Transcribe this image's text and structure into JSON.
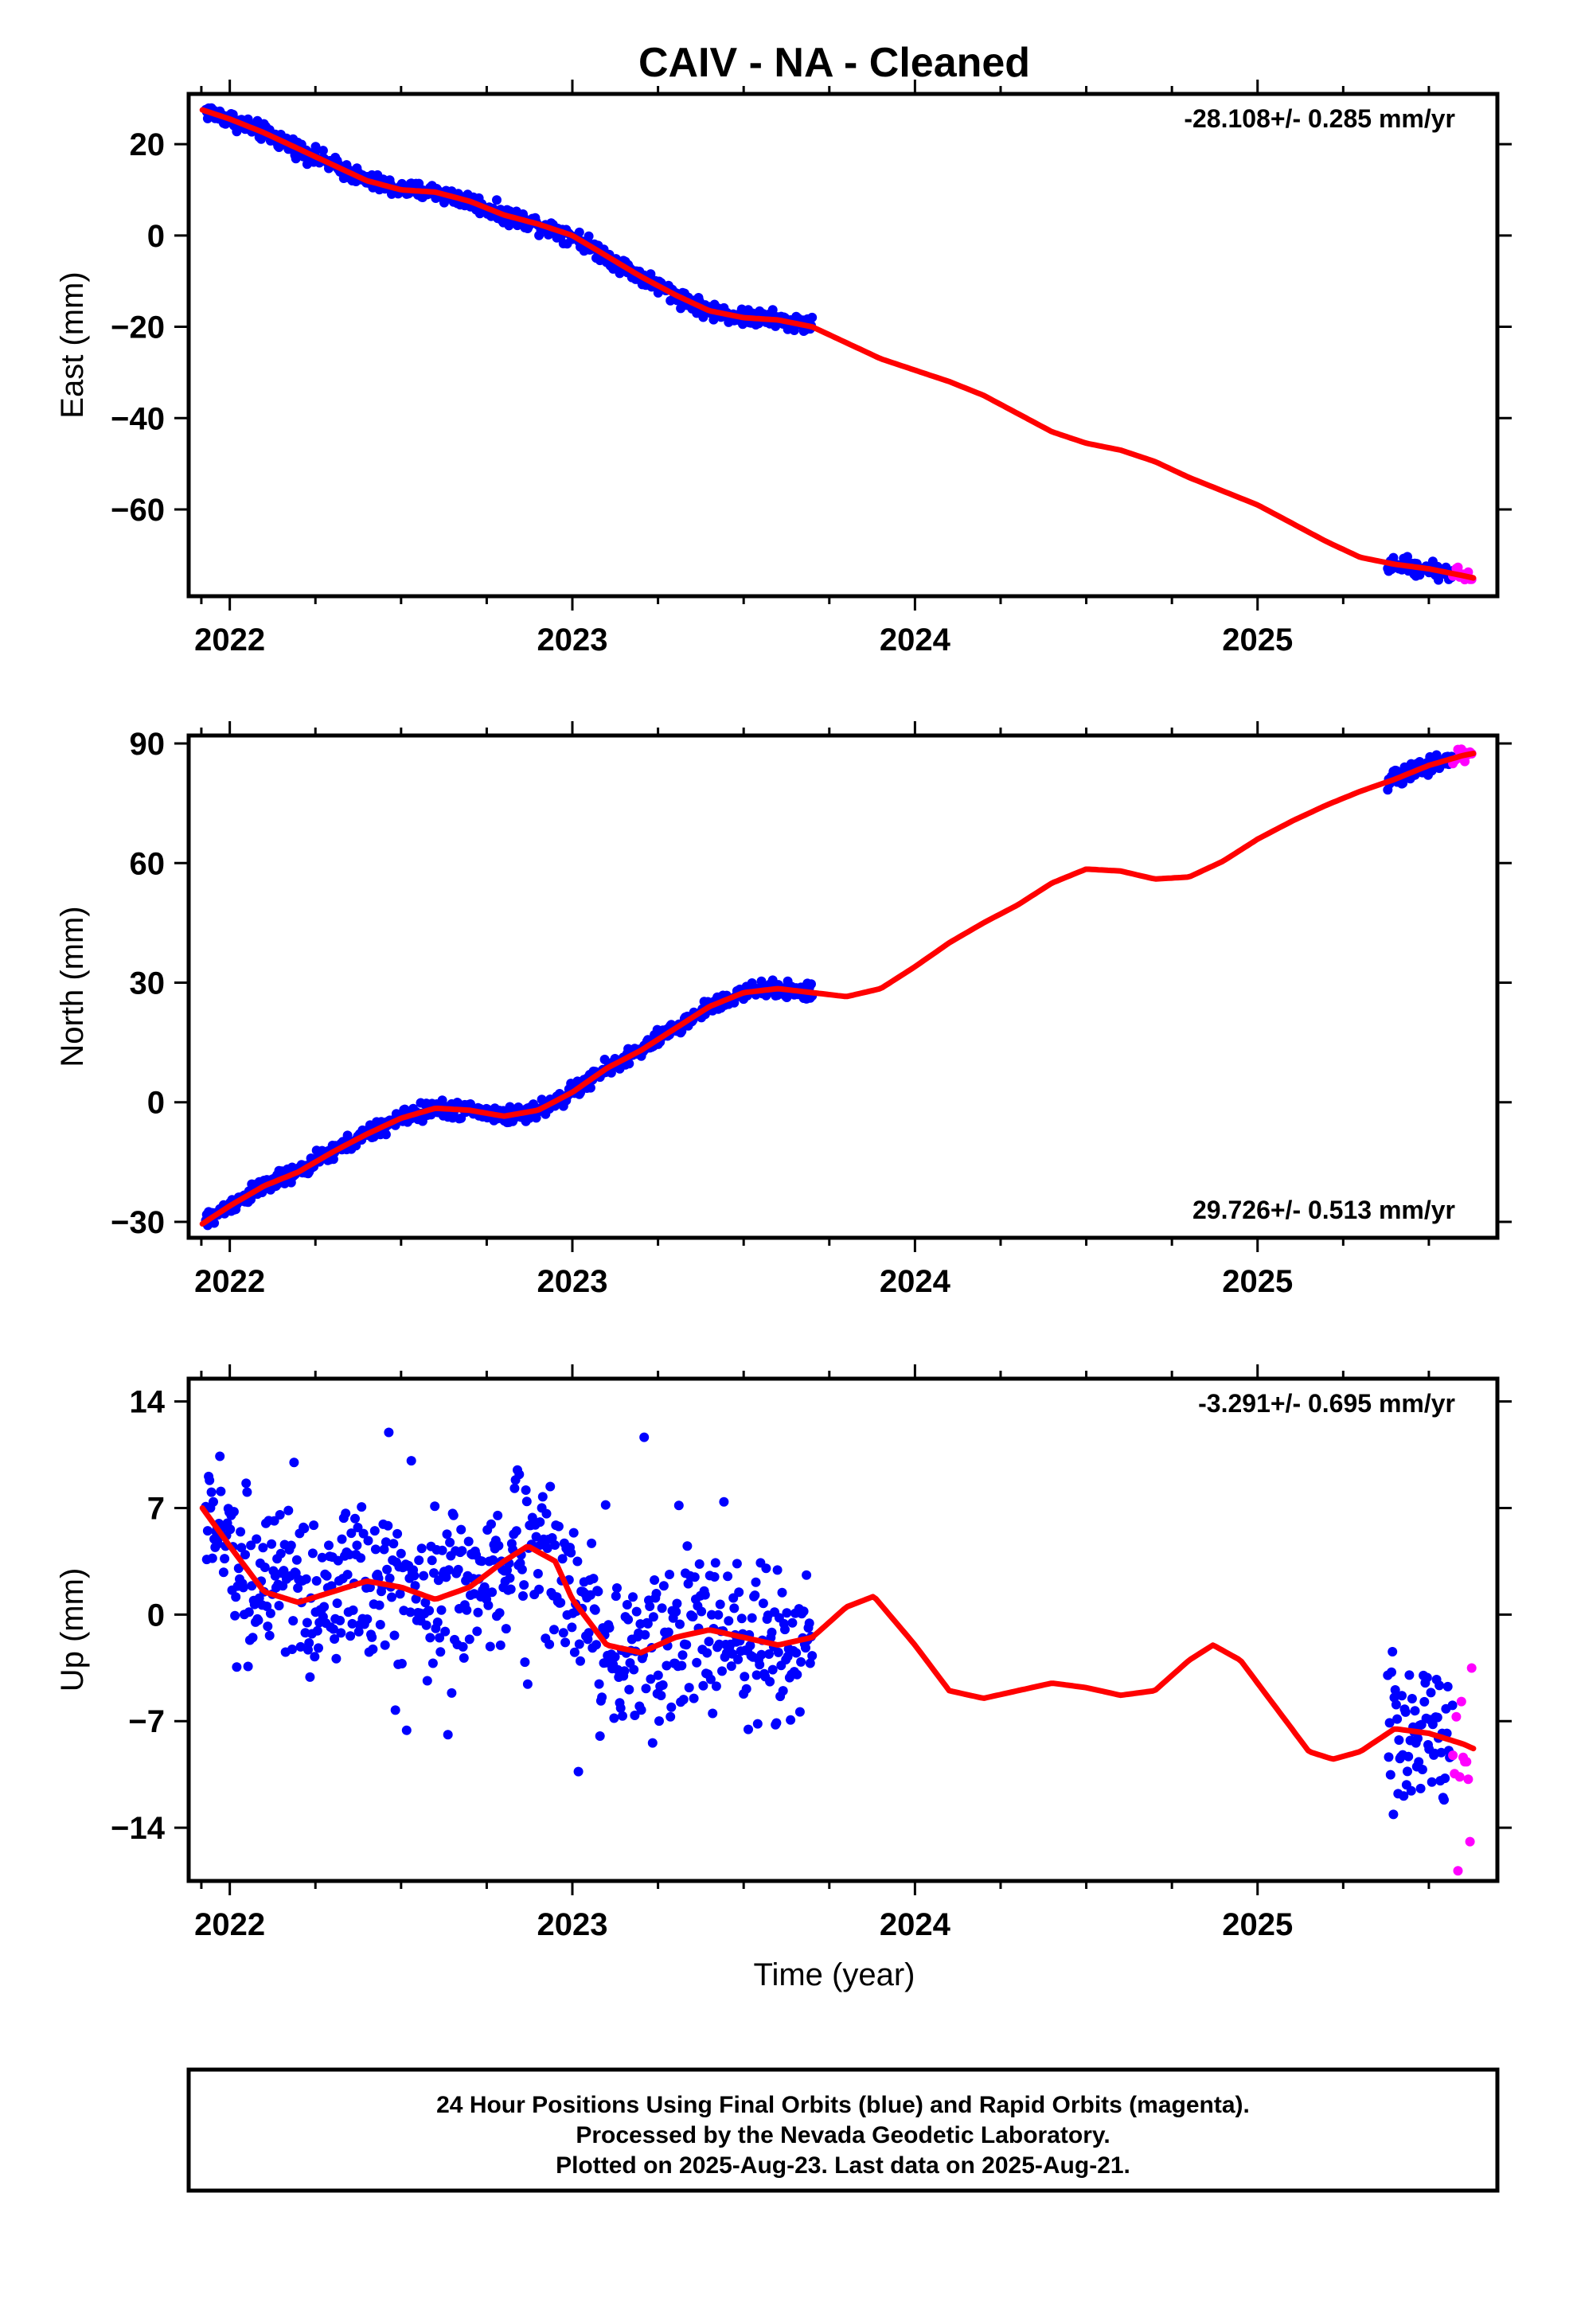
{
  "title": "CAIV  - NA - Cleaned",
  "xlabel": "Time (year)",
  "colors": {
    "final": "#0000ff",
    "rapid": "#ff00ff",
    "model": "#ff0000",
    "frame": "#000000"
  },
  "footer": {
    "line1": "24 Hour Positions Using Final Orbits (blue) and Rapid Orbits (magenta).",
    "line2": "Processed by the Nevada Geodetic Laboratory.",
    "line3": "Plotted on 2025-Aug-23. Last data on 2025-Aug-21."
  },
  "chart_data": [
    {
      "type": "scatter",
      "ylabel": "East (mm)",
      "rate_label": "-28.108+/- 0.285 mm/yr",
      "rate_position": "top-right",
      "xlim": [
        2021.88,
        2025.7
      ],
      "ylim": [
        -79,
        31
      ],
      "x_ticks": [
        "2022",
        "2023",
        "2024",
        "2025"
      ],
      "y_ticks": [
        "20",
        "0",
        "−20",
        "−40",
        "−60"
      ],
      "y_tick_values": [
        20,
        0,
        -20,
        -40,
        -60
      ],
      "model_curve": {
        "name": "model fit",
        "x": [
          2021.92,
          2022.0,
          2022.1,
          2022.2,
          2022.3,
          2022.4,
          2022.5,
          2022.6,
          2022.7,
          2022.8,
          2022.9,
          2023.0,
          2023.1,
          2023.2,
          2023.3,
          2023.4,
          2023.5,
          2023.6,
          2023.7,
          2023.8,
          2023.9,
          2024.0,
          2024.1,
          2024.2,
          2024.3,
          2024.4,
          2024.5,
          2024.6,
          2024.7,
          2024.8,
          2024.9,
          2025.0,
          2025.1,
          2025.2,
          2025.3,
          2025.4,
          2025.5,
          2025.6,
          2025.63
        ],
        "y": [
          27.5,
          25.5,
          22.5,
          19.0,
          15.5,
          12.0,
          10.0,
          9.5,
          7.5,
          4.5,
          2.5,
          0.0,
          -4.5,
          -9.0,
          -13.0,
          -16.5,
          -18.0,
          -18.5,
          -20.0,
          -23.5,
          -27.0,
          -29.5,
          -32.0,
          -35.0,
          -39.0,
          -43.0,
          -45.5,
          -47.0,
          -49.5,
          -53.0,
          -56.0,
          -59.0,
          -63.0,
          -67.0,
          -70.5,
          -72.0,
          -73.0,
          -74.5,
          -75.0
        ]
      },
      "final_segments": [
        [
          2021.93,
          2023.7
        ],
        [
          2025.38,
          2025.57
        ]
      ],
      "rapid_segment": [
        2025.57,
        2025.63
      ],
      "scatter_noise_mm": 1.3
    },
    {
      "type": "scatter",
      "ylabel": "North (mm)",
      "rate_label": "29.726+/- 0.513 mm/yr",
      "rate_position": "bottom-right",
      "xlim": [
        2021.88,
        2025.7
      ],
      "ylim": [
        -34,
        92
      ],
      "x_ticks": [
        "2022",
        "2023",
        "2024",
        "2025"
      ],
      "y_ticks": [
        "90",
        "60",
        "30",
        "0",
        "−30"
      ],
      "y_tick_values": [
        90,
        60,
        30,
        0,
        -30
      ],
      "model_curve": {
        "name": "model fit",
        "x": [
          2021.92,
          2022.0,
          2022.1,
          2022.2,
          2022.3,
          2022.4,
          2022.5,
          2022.6,
          2022.7,
          2022.8,
          2022.9,
          2023.0,
          2023.1,
          2023.2,
          2023.3,
          2023.4,
          2023.5,
          2023.6,
          2023.7,
          2023.8,
          2023.9,
          2024.0,
          2024.1,
          2024.2,
          2024.3,
          2024.4,
          2024.5,
          2024.6,
          2024.7,
          2024.8,
          2024.9,
          2025.0,
          2025.1,
          2025.2,
          2025.3,
          2025.4,
          2025.5,
          2025.6,
          2025.63
        ],
        "y": [
          -30.5,
          -26.0,
          -21.0,
          -17.5,
          -12.5,
          -8.0,
          -4.0,
          -1.5,
          -2.0,
          -3.5,
          -2.0,
          2.5,
          8.5,
          13.0,
          18.5,
          24.0,
          27.5,
          28.5,
          27.5,
          26.5,
          28.5,
          34.0,
          40.0,
          45.0,
          49.5,
          55.0,
          58.5,
          58.0,
          56.0,
          56.5,
          60.5,
          66.0,
          70.5,
          74.5,
          78.0,
          81.0,
          84.5,
          87.0,
          87.5
        ]
      },
      "final_segments": [
        [
          2021.93,
          2023.7
        ],
        [
          2025.38,
          2025.57
        ]
      ],
      "rapid_segment": [
        2025.57,
        2025.63
      ],
      "scatter_noise_mm": 1.5
    },
    {
      "type": "scatter",
      "ylabel": "Up (mm)",
      "rate_label": "-3.291+/- 0.695 mm/yr",
      "rate_position": "top-right",
      "xlim": [
        2021.88,
        2025.7
      ],
      "ylim": [
        -17.5,
        15.5
      ],
      "x_ticks": [
        "2022",
        "2023",
        "2024",
        "2025"
      ],
      "y_ticks": [
        "14",
        "7",
        "0",
        "−7",
        "−14"
      ],
      "y_tick_values": [
        14,
        7,
        0,
        -7,
        -14
      ],
      "model_curve": {
        "name": "model fit",
        "x": [
          2021.92,
          2022.0,
          2022.1,
          2022.2,
          2022.3,
          2022.4,
          2022.5,
          2022.6,
          2022.7,
          2022.8,
          2022.87,
          2022.95,
          2023.0,
          2023.1,
          2023.2,
          2023.3,
          2023.4,
          2023.5,
          2023.6,
          2023.7,
          2023.8,
          2023.88,
          2024.0,
          2024.1,
          2024.2,
          2024.3,
          2024.4,
          2024.5,
          2024.6,
          2024.7,
          2024.8,
          2024.87,
          2024.95,
          2025.05,
          2025.15,
          2025.22,
          2025.3,
          2025.4,
          2025.5,
          2025.6,
          2025.63
        ],
        "y": [
          7.0,
          4.5,
          1.5,
          0.8,
          1.5,
          2.2,
          1.8,
          1.0,
          1.8,
          3.5,
          4.5,
          3.5,
          1.0,
          -2.0,
          -2.5,
          -1.5,
          -1.0,
          -1.5,
          -2.0,
          -1.5,
          0.5,
          1.2,
          -2.0,
          -5.0,
          -5.5,
          -5.0,
          -4.5,
          -4.8,
          -5.3,
          -5.0,
          -3.0,
          -2.0,
          -3.0,
          -6.0,
          -9.0,
          -9.5,
          -9.0,
          -7.5,
          -7.8,
          -8.5,
          -8.8
        ]
      },
      "final_segments": [
        [
          2021.93,
          2023.7
        ],
        [
          2025.38,
          2025.57
        ]
      ],
      "rapid_segment": [
        2025.57,
        2025.63
      ],
      "scatter_noise_mm": 3.5
    }
  ]
}
